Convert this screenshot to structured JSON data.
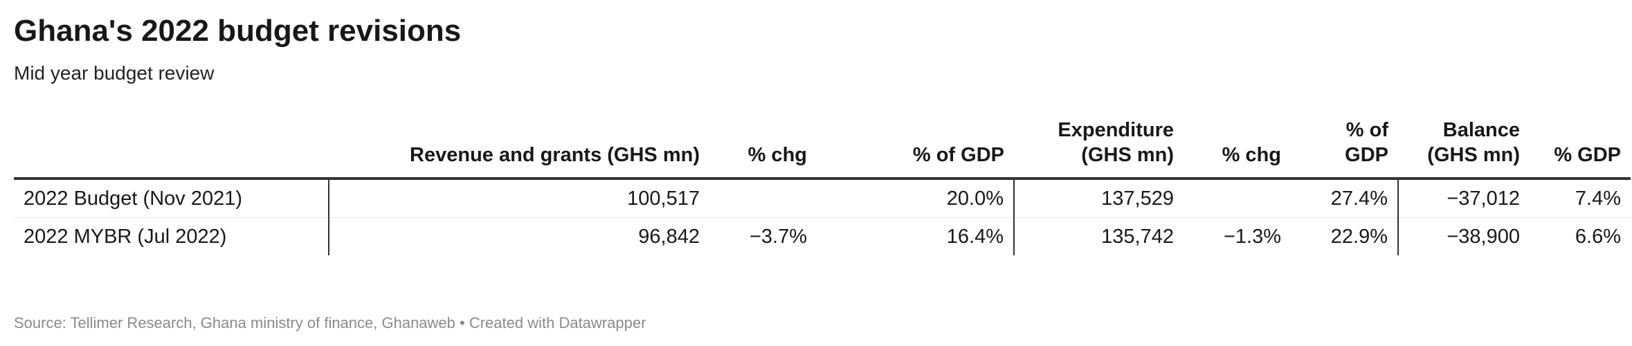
{
  "title": "Ghana's 2022 budget revisions",
  "subtitle": "Mid year budget review",
  "chart_data": {
    "type": "table",
    "columns": [
      "",
      "Revenue and grants (GHS mn)",
      "% chg",
      "% of GDP",
      "Expenditure (GHS mn)",
      "% chg",
      "% of GDP",
      "Balance (GHS mn)",
      "% GDP"
    ],
    "rows": [
      [
        "2022 Budget (Nov 2021)",
        "100,517",
        "",
        "20.0%",
        "137,529",
        "",
        "27.4%",
        "−37,012",
        "7.4%"
      ],
      [
        "2022 MYBR (Jul 2022)",
        "96,842",
        "−3.7%",
        "16.4%",
        "135,742",
        "−1.3%",
        "22.9%",
        "−38,900",
        "6.6%"
      ]
    ]
  },
  "footer": {
    "source": "Source: Tellimer Research, Ghana ministry of finance, Ghanaweb • Created with Datawrapper"
  }
}
